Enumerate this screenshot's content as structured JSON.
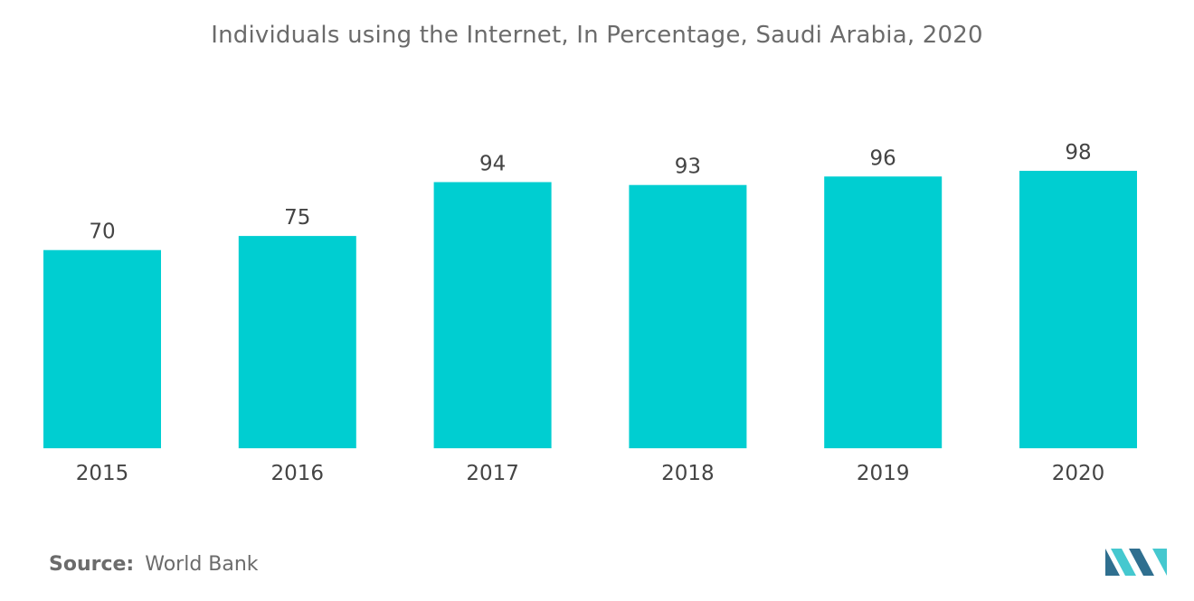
{
  "chart_data": {
    "type": "bar",
    "title": "Individuals using the Internet, In Percentage, Saudi Arabia, 2020",
    "categories": [
      "2015",
      "2016",
      "2017",
      "2018",
      "2019",
      "2020"
    ],
    "values": [
      70,
      75,
      94,
      93,
      96,
      98
    ],
    "value_labels": [
      "70",
      "75",
      "94",
      "93",
      "96",
      "98"
    ],
    "xlabel": "",
    "ylabel": "",
    "ylim": [
      0,
      100
    ],
    "grid": false,
    "legend": "none",
    "bar_color": "#00ced1"
  },
  "source": {
    "label": "Source:",
    "value": "World Bank"
  },
  "colors": {
    "bar": "#00ced1",
    "text": "#6b6b6b",
    "value_text": "#444444",
    "logo_dark": "#2f6f8f",
    "logo_light": "#45c8cf"
  },
  "logo": {
    "icon": "mordor-intelligence-logo-icon"
  }
}
